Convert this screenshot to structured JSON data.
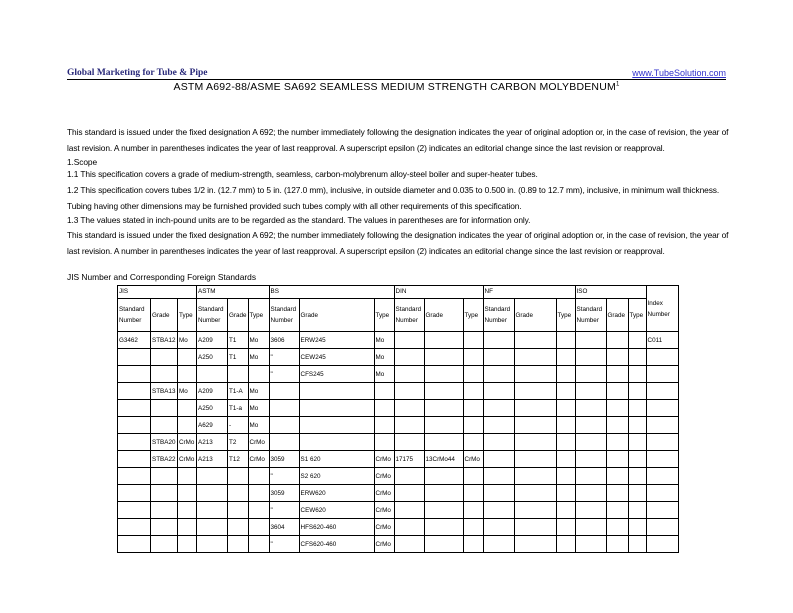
{
  "header": {
    "company": "Global Marketing for Tube & Pipe",
    "url": "www.TubeSolution.com"
  },
  "title": "ASTM A692-88/ASME SA692 SEAMLESS MEDIUM STRENGTH CARBON MOLYBDENUM",
  "title_sup": "1",
  "paragraphs": [
    "This standard is issued under the fixed designation A 692; the number immediately following the designation indicates the year of original adoption or, in the case of revision, the year of last revision. A number in parentheses indicates the year of last reapproval. A superscript epsilon (2) indicates an editorial change since the last revision or reapproval.",
    "1.Scope",
    "1.1 This specification covers a grade of medium-strength, seamless, carbon-molybrenum alloy-steel boiler and super-heater tubes.",
    "1.2 This specification covers tubes 1/2 in. (12.7 mm) to 5 in. (127.0 mm), inclusive, in outside diameter and 0.035 to 0.500 in. (0.89 to 12.7 mm), inclusive, in minimum wall thickness. Tubing having other dimensions may be furnished provided such tubes comply with all other requirements of this specification.",
    "1.3 The values stated in inch-pound units are to be regarded as the standard. The values in parentheses are for information only.",
    "This standard is issued under the fixed designation A 692; the number immediately following the designation indicates the year of original adoption or, in the case of revision, the year of last revision. A number in parentheses indicates the year of last reapproval. A superscript epsilon (2) indicates an editorial change since the last revision or reapproval."
  ],
  "table": {
    "caption": "JIS Number and Corresponding Foreign Standards",
    "groups": [
      "JIS",
      "ASTM",
      "BS",
      "DIN",
      "NF",
      "ISO"
    ],
    "index_header": "Index Number",
    "subheaders": [
      "Standard Number",
      "Grade",
      "Type"
    ],
    "rows": [
      [
        "G3462",
        "STBA12",
        "Mo",
        "A209",
        "T1",
        "Mo",
        "3606",
        "ERW245",
        "Mo",
        "",
        "",
        "",
        "",
        "",
        "",
        "",
        "",
        "",
        "C011"
      ],
      [
        "",
        "",
        "",
        "A250",
        "T1",
        "Mo",
        "\"",
        "CEW245",
        "Mo",
        "",
        "",
        "",
        "",
        "",
        "",
        "",
        "",
        "",
        ""
      ],
      [
        "",
        "",
        "",
        "",
        "",
        "",
        "\"",
        "CFS245",
        "Mo",
        "",
        "",
        "",
        "",
        "",
        "",
        "",
        "",
        "",
        ""
      ],
      [
        "",
        "STBA13",
        "Mo",
        "A209",
        "T1-A",
        "Mo",
        "",
        "",
        "",
        "",
        "",
        "",
        "",
        "",
        "",
        "",
        "",
        "",
        ""
      ],
      [
        "",
        "",
        "",
        "A250",
        "T1-a",
        "Mo",
        "",
        "",
        "",
        "",
        "",
        "",
        "",
        "",
        "",
        "",
        "",
        "",
        ""
      ],
      [
        "",
        "",
        "",
        "A629",
        "-",
        "Mo",
        "",
        "",
        "",
        "",
        "",
        "",
        "",
        "",
        "",
        "",
        "",
        "",
        ""
      ],
      [
        "",
        "STBA20",
        "CrMo",
        "A213",
        "T2",
        "CrMo",
        "",
        "",
        "",
        "",
        "",
        "",
        "",
        "",
        "",
        "",
        "",
        "",
        ""
      ],
      [
        "",
        "STBA22",
        "CrMo",
        "A213",
        "T12",
        "CrMo",
        "3059",
        "S1 620",
        "CrMo",
        "17175",
        "13CrMo44",
        "CrMo",
        "",
        "",
        "",
        "",
        "",
        "",
        ""
      ],
      [
        "",
        "",
        "",
        "",
        "",
        "",
        "\"",
        "S2 620",
        "CrMo",
        "",
        "",
        "",
        "",
        "",
        "",
        "",
        "",
        "",
        ""
      ],
      [
        "",
        "",
        "",
        "",
        "",
        "",
        "3059",
        "ERW620",
        "CrMo",
        "",
        "",
        "",
        "",
        "",
        "",
        "",
        "",
        "",
        ""
      ],
      [
        "",
        "",
        "",
        "",
        "",
        "",
        "\"",
        "CEW620",
        "CrMo",
        "",
        "",
        "",
        "",
        "",
        "",
        "",
        "",
        "",
        ""
      ],
      [
        "",
        "",
        "",
        "",
        "",
        "",
        "3604",
        "HFS620-460",
        "CrMo",
        "",
        "",
        "",
        "",
        "",
        "",
        "",
        "",
        "",
        ""
      ],
      [
        "",
        "",
        "",
        "",
        "",
        "",
        "\"",
        "CFS620-460",
        "CrMo",
        "",
        "",
        "",
        "",
        "",
        "",
        "",
        "",
        "",
        ""
      ]
    ]
  }
}
